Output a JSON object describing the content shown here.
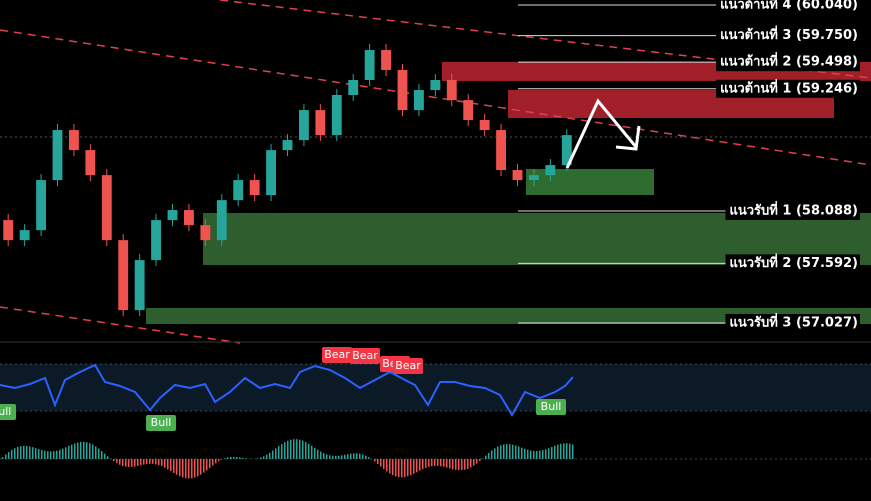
{
  "chart_data": {
    "type": "candlestick",
    "ylim": [
      56.866,
      60.087
    ],
    "closes": [
      58.002,
      57.812,
      57.907,
      58.381,
      58.855,
      58.665,
      58.428,
      57.812,
      57.149,
      57.623,
      58.002,
      58.097,
      57.954,
      57.812,
      58.191,
      58.381,
      58.239,
      58.665,
      58.76,
      59.044,
      58.807,
      59.187,
      59.329,
      59.613,
      59.424,
      59.044,
      59.234,
      59.329,
      59.139,
      58.95,
      58.855,
      58.476,
      58.381,
      58.428,
      58.523,
      58.807
    ],
    "up_color": "#26a69a",
    "down_color": "#ef5350",
    "levels": [
      {
        "label": "แนวต้านที่ 4 (60.040)",
        "value": 60.04
      },
      {
        "label": "แนวต้านที่ 3 (59.750)",
        "value": 59.75
      },
      {
        "label": "แนวต้านที่ 2 (59.498)",
        "value": 59.498
      },
      {
        "label": "แนวต้านที่ 1 (59.246)",
        "value": 59.246
      },
      {
        "label": "แนวรับที่ 1 (58.088)",
        "value": 58.088
      },
      {
        "label": "แนวรับที่ 2 (57.592)",
        "value": 57.592
      },
      {
        "label": "แนวรับที่ 3 (57.027)",
        "value": 57.027
      }
    ],
    "signals": [
      {
        "label": "Bull"
      },
      {
        "label": "Bull"
      },
      {
        "label": "Bear"
      },
      {
        "label": "Bear"
      },
      {
        "label": "Bear"
      },
      {
        "label": "Bear"
      },
      {
        "label": "Bull"
      }
    ]
  }
}
